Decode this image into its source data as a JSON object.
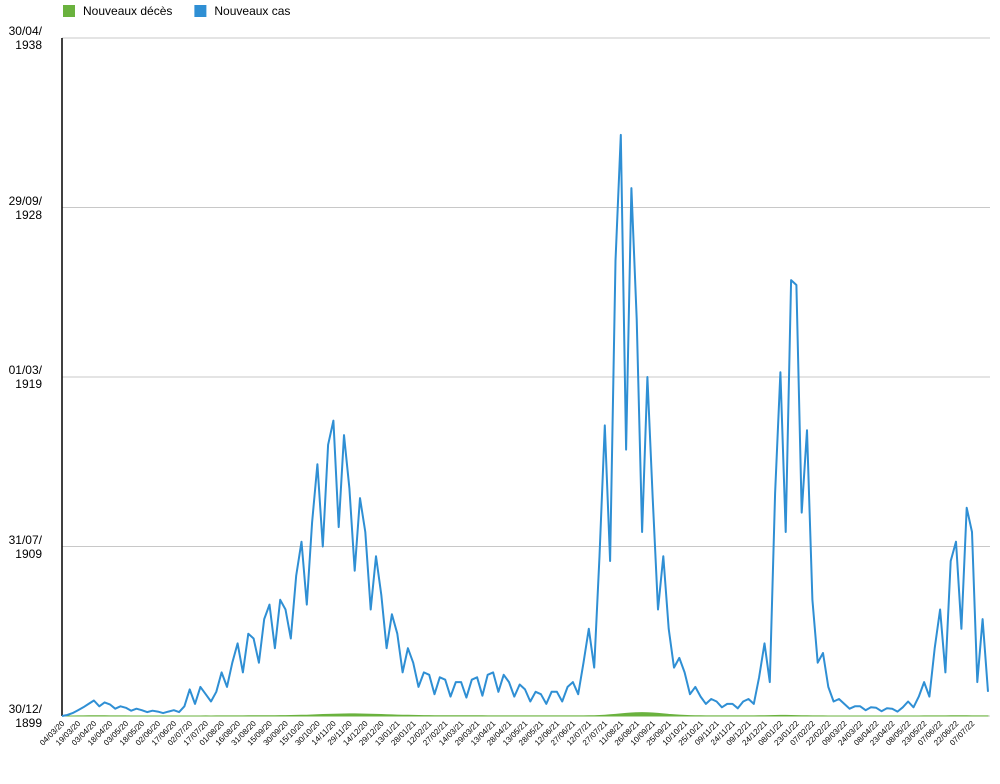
{
  "chart_data": {
    "type": "line",
    "series": [
      {
        "name": "Nouveaux décès",
        "color": "#6ab23e",
        "area": true,
        "values": [
          0,
          0,
          1,
          2,
          3,
          4,
          5,
          4,
          4,
          3,
          3,
          2,
          2,
          1,
          1,
          1,
          1,
          1,
          1,
          1,
          1,
          1,
          1,
          1,
          1,
          1,
          1,
          2,
          1,
          2,
          2,
          2,
          3,
          3,
          3,
          4,
          4,
          5,
          5,
          6,
          7,
          8,
          9,
          10,
          12,
          14,
          16,
          20,
          24,
          30,
          34,
          38,
          40,
          42,
          44,
          44,
          42,
          40,
          38,
          34,
          30,
          26,
          22,
          18,
          16,
          14,
          12,
          10,
          9,
          8,
          7,
          6,
          6,
          5,
          5,
          5,
          4,
          4,
          4,
          4,
          3,
          3,
          3,
          3,
          2,
          2,
          2,
          2,
          2,
          2,
          2,
          2,
          2,
          2,
          2,
          2,
          2,
          2,
          3,
          4,
          6,
          10,
          16,
          24,
          34,
          44,
          54,
          62,
          68,
          70,
          68,
          62,
          54,
          44,
          34,
          26,
          18,
          12,
          8,
          6,
          4,
          3,
          2,
          2,
          2,
          2,
          2,
          2,
          2,
          2,
          3,
          4,
          6,
          8,
          10,
          12,
          12,
          10,
          8,
          6,
          4,
          3,
          2,
          2,
          1,
          1,
          1,
          1,
          1,
          1,
          1,
          1,
          1,
          1,
          1,
          1,
          1,
          1,
          1,
          1,
          1,
          1,
          2,
          2,
          2,
          3,
          3,
          4,
          4,
          4,
          4,
          3,
          3,
          3,
          3
        ]
      },
      {
        "name": "Nouveaux cas",
        "color": "#2f8fd4",
        "values": [
          0,
          20,
          60,
          120,
          180,
          250,
          320,
          200,
          280,
          240,
          150,
          200,
          170,
          110,
          150,
          120,
          80,
          110,
          90,
          60,
          90,
          120,
          80,
          200,
          550,
          250,
          600,
          450,
          300,
          500,
          900,
          600,
          1100,
          1500,
          900,
          1700,
          1600,
          1100,
          2000,
          2300,
          1400,
          2400,
          2200,
          1600,
          2900,
          3600,
          2300,
          4000,
          5200,
          3500,
          5600,
          6100,
          3900,
          5800,
          4700,
          3000,
          4500,
          3800,
          2200,
          3300,
          2500,
          1400,
          2100,
          1700,
          900,
          1400,
          1100,
          600,
          900,
          850,
          450,
          800,
          750,
          400,
          700,
          700,
          380,
          750,
          800,
          420,
          850,
          900,
          500,
          850,
          700,
          400,
          650,
          550,
          300,
          500,
          450,
          250,
          500,
          500,
          300,
          600,
          700,
          450,
          1100,
          1800,
          1000,
          3300,
          6000,
          3200,
          9400,
          12000,
          5500,
          10900,
          8200,
          3800,
          7000,
          4500,
          2200,
          3300,
          1800,
          1000,
          1200,
          900,
          450,
          600,
          400,
          250,
          350,
          300,
          180,
          250,
          250,
          160,
          300,
          350,
          250,
          800,
          1500,
          700,
          4600,
          7100,
          3800,
          9000,
          8900,
          4200,
          5900,
          2400,
          1100,
          1300,
          600,
          300,
          350,
          250,
          150,
          200,
          200,
          120,
          180,
          170,
          100,
          160,
          150,
          90,
          180,
          300,
          180,
          400,
          700,
          400,
          1400,
          2200,
          900,
          3200,
          3600,
          1800,
          4300,
          3800,
          700,
          2000,
          500
        ]
      }
    ],
    "categories": [
      "04/03/20",
      null,
      null,
      "19/03/20",
      null,
      null,
      "03/04/20",
      null,
      null,
      "18/04/20",
      null,
      null,
      "03/05/20",
      null,
      null,
      "18/05/20",
      null,
      null,
      "02/06/20",
      null,
      null,
      "17/06/20",
      null,
      null,
      "02/07/20",
      null,
      null,
      "17/07/20",
      null,
      null,
      "01/08/20",
      null,
      null,
      "16/08/20",
      null,
      null,
      "31/08/20",
      null,
      null,
      "15/09/20",
      null,
      null,
      "30/09/20",
      null,
      null,
      "15/10/20",
      null,
      null,
      "30/10/20",
      null,
      null,
      "14/11/20",
      null,
      null,
      "29/11/20",
      null,
      null,
      "14/12/20",
      null,
      null,
      "29/12/20",
      null,
      null,
      "13/01/21",
      null,
      null,
      "28/01/21",
      null,
      null,
      "12/02/21",
      null,
      null,
      "27/02/21",
      null,
      null,
      "14/03/21",
      null,
      null,
      "29/03/21",
      null,
      null,
      "13/04/21",
      null,
      null,
      "28/04/21",
      null,
      null,
      "13/05/21",
      null,
      null,
      "28/05/21",
      null,
      null,
      "12/06/21",
      null,
      null,
      "27/06/21",
      null,
      null,
      "12/07/21",
      null,
      null,
      "27/07/21",
      null,
      null,
      "11/08/21",
      null,
      null,
      "26/08/21",
      null,
      null,
      "10/09/21",
      null,
      null,
      "25/09/21",
      null,
      null,
      "10/10/21",
      null,
      null,
      "25/10/21",
      null,
      null,
      "09/11/21",
      null,
      null,
      "24/11/21",
      null,
      null,
      "09/12/21",
      null,
      null,
      "24/12/21",
      null,
      null,
      "08/01/22",
      null,
      null,
      "23/01/22",
      null,
      null,
      "07/02/22",
      null,
      null,
      "22/02/22",
      null,
      null,
      "09/03/22",
      null,
      null,
      "24/03/22",
      null,
      null,
      "08/04/22",
      null,
      null,
      "23/04/22",
      null,
      null,
      "08/05/22",
      null,
      null,
      "23/05/22",
      null,
      null,
      "07/06/22",
      null,
      null,
      "22/06/22",
      null,
      null,
      "07/07/22",
      null,
      null,
      null
    ],
    "ylim": [
      0,
      14000
    ],
    "yticks": [
      {
        "value": 0,
        "label": "30/12/\n1899"
      },
      {
        "value": 3500,
        "label": "31/07/\n1909"
      },
      {
        "value": 7000,
        "label": "01/03/\n1919"
      },
      {
        "value": 10500,
        "label": "29/09/\n1928"
      },
      {
        "value": 14000,
        "label": "30/04/\n1938"
      }
    ],
    "grid": true,
    "legend": "top-left"
  }
}
